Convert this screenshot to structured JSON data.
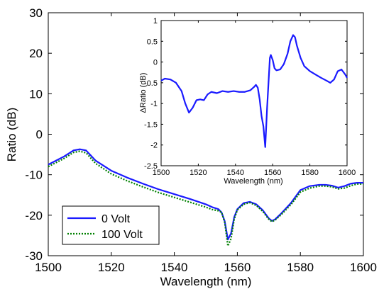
{
  "chart_data": [
    {
      "type": "line",
      "title": "",
      "xlabel": "Wavelength (nm)",
      "ylabel": "Ratio (dB)",
      "xlim": [
        1500,
        1600
      ],
      "ylim": [
        -30,
        30
      ],
      "xticks": [
        1500,
        1520,
        1540,
        1560,
        1580,
        1600
      ],
      "yticks": [
        -30,
        -20,
        -10,
        0,
        10,
        20,
        30
      ],
      "grid": false,
      "legend_position": "bottom-left",
      "series": [
        {
          "name": "0 Volt",
          "color": "#1a1aff",
          "style": "solid",
          "points": [
            [
              1500,
              -7.5
            ],
            [
              1505,
              -5.5
            ],
            [
              1508,
              -4.0
            ],
            [
              1510,
              -3.7
            ],
            [
              1512,
              -4.0
            ],
            [
              1515,
              -6.5
            ],
            [
              1520,
              -9.0
            ],
            [
              1525,
              -10.7
            ],
            [
              1530,
              -12.2
            ],
            [
              1535,
              -13.6
            ],
            [
              1540,
              -14.8
            ],
            [
              1545,
              -16.0
            ],
            [
              1550,
              -17.3
            ],
            [
              1552,
              -18.0
            ],
            [
              1554,
              -18.5
            ],
            [
              1555,
              -19.3
            ],
            [
              1556,
              -21.5
            ],
            [
              1557,
              -26.0
            ],
            [
              1558,
              -24.5
            ],
            [
              1559,
              -20.5
            ],
            [
              1560,
              -18.5
            ],
            [
              1562,
              -17.0
            ],
            [
              1564,
              -16.7
            ],
            [
              1566,
              -17.3
            ],
            [
              1568,
              -18.7
            ],
            [
              1570,
              -20.8
            ],
            [
              1571,
              -21.4
            ],
            [
              1572,
              -21.0
            ],
            [
              1574,
              -19.5
            ],
            [
              1577,
              -17.0
            ],
            [
              1580,
              -13.8
            ],
            [
              1583,
              -12.8
            ],
            [
              1586,
              -12.5
            ],
            [
              1588,
              -12.5
            ],
            [
              1590,
              -12.7
            ],
            [
              1592,
              -13.2
            ],
            [
              1594,
              -12.8
            ],
            [
              1596,
              -12.2
            ],
            [
              1598,
              -12.0
            ],
            [
              1600,
              -12.0
            ]
          ]
        },
        {
          "name": "100 Volt",
          "color": "#008000",
          "style": "dotted",
          "points": [
            [
              1500,
              -8.0
            ],
            [
              1505,
              -6.0
            ],
            [
              1508,
              -4.5
            ],
            [
              1510,
              -4.2
            ],
            [
              1512,
              -4.6
            ],
            [
              1515,
              -7.2
            ],
            [
              1520,
              -9.8
            ],
            [
              1525,
              -11.5
            ],
            [
              1530,
              -13.0
            ],
            [
              1535,
              -14.4
            ],
            [
              1540,
              -15.6
            ],
            [
              1545,
              -16.8
            ],
            [
              1550,
              -18.0
            ],
            [
              1552,
              -18.6
            ],
            [
              1554,
              -18.9
            ],
            [
              1555,
              -19.3
            ],
            [
              1556,
              -21.8
            ],
            [
              1557,
              -27.6
            ],
            [
              1558,
              -25.8
            ],
            [
              1559,
              -21.0
            ],
            [
              1560,
              -18.7
            ],
            [
              1562,
              -17.3
            ],
            [
              1564,
              -16.9
            ],
            [
              1566,
              -17.6
            ],
            [
              1568,
              -19.0
            ],
            [
              1570,
              -21.0
            ],
            [
              1571,
              -21.6
            ],
            [
              1572,
              -21.2
            ],
            [
              1574,
              -19.8
            ],
            [
              1577,
              -17.4
            ],
            [
              1580,
              -14.3
            ],
            [
              1583,
              -13.3
            ],
            [
              1586,
              -12.8
            ],
            [
              1588,
              -12.8
            ],
            [
              1590,
              -13.0
            ],
            [
              1592,
              -13.5
            ],
            [
              1594,
              -13.3
            ],
            [
              1596,
              -12.7
            ],
            [
              1598,
              -12.3
            ],
            [
              1600,
              -12.3
            ]
          ]
        }
      ]
    },
    {
      "type": "line",
      "title": "",
      "xlabel": "Wavelength (nm)",
      "ylabel": "ΔRatio (dB)",
      "xlim": [
        1500,
        1600
      ],
      "ylim": [
        -2.5,
        1
      ],
      "xticks": [
        1500,
        1520,
        1540,
        1560,
        1580,
        1600
      ],
      "yticks": [
        -2.5,
        -2,
        -1.5,
        -1,
        -0.5,
        0,
        0.5,
        1
      ],
      "ytick_labels": [
        "-2.5",
        "-2",
        "-1.5",
        "-1",
        "-0.5",
        "0",
        "0.5",
        "1"
      ],
      "grid": false,
      "series": [
        {
          "color": "#1a1aff",
          "style": "solid",
          "points": [
            [
              1500,
              -0.45
            ],
            [
              1502,
              -0.4
            ],
            [
              1505,
              -0.42
            ],
            [
              1508,
              -0.5
            ],
            [
              1511,
              -0.7
            ],
            [
              1513,
              -1.0
            ],
            [
              1515,
              -1.22
            ],
            [
              1517,
              -1.1
            ],
            [
              1519,
              -0.92
            ],
            [
              1521,
              -0.9
            ],
            [
              1523,
              -0.92
            ],
            [
              1525,
              -0.78
            ],
            [
              1527,
              -0.72
            ],
            [
              1530,
              -0.75
            ],
            [
              1533,
              -0.7
            ],
            [
              1536,
              -0.72
            ],
            [
              1539,
              -0.7
            ],
            [
              1542,
              -0.72
            ],
            [
              1545,
              -0.72
            ],
            [
              1548,
              -0.68
            ],
            [
              1550,
              -0.6
            ],
            [
              1551,
              -0.55
            ],
            [
              1552,
              -0.62
            ],
            [
              1553,
              -0.9
            ],
            [
              1554,
              -1.3
            ],
            [
              1555,
              -1.55
            ],
            [
              1556,
              -2.05
            ],
            [
              1557,
              -1.1
            ],
            [
              1558,
              -0.3
            ],
            [
              1558.5,
              0.1
            ],
            [
              1559,
              0.17
            ],
            [
              1560,
              0.05
            ],
            [
              1561,
              -0.15
            ],
            [
              1562,
              -0.2
            ],
            [
              1564,
              -0.18
            ],
            [
              1566,
              -0.05
            ],
            [
              1568,
              0.2
            ],
            [
              1569.5,
              0.5
            ],
            [
              1571,
              0.65
            ],
            [
              1572,
              0.6
            ],
            [
              1573,
              0.4
            ],
            [
              1575,
              0.1
            ],
            [
              1577,
              -0.1
            ],
            [
              1580,
              -0.22
            ],
            [
              1583,
              -0.3
            ],
            [
              1586,
              -0.38
            ],
            [
              1589,
              -0.45
            ],
            [
              1591,
              -0.5
            ],
            [
              1593,
              -0.42
            ],
            [
              1595,
              -0.22
            ],
            [
              1597,
              -0.18
            ],
            [
              1599,
              -0.3
            ],
            [
              1600,
              -0.38
            ]
          ]
        }
      ]
    }
  ]
}
